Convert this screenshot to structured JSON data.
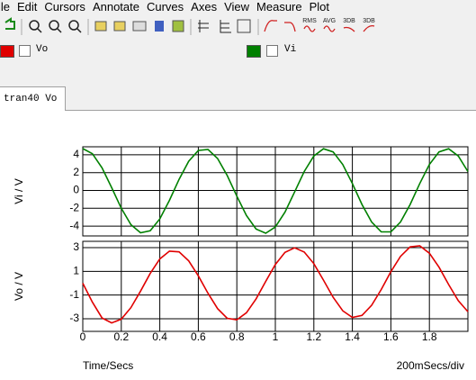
{
  "menu": [
    "ile",
    "Edit",
    "Cursors",
    "Annotate",
    "Curves",
    "Axes",
    "View",
    "Measure",
    "Plot"
  ],
  "toolbar_labels": [
    "RMS",
    "AVG",
    "3DB",
    "3DB"
  ],
  "tab": "tran40 Vo",
  "chart_data": [
    {
      "type": "line",
      "y_label": "Vi / V",
      "x": [
        0,
        0.05,
        0.1,
        0.15,
        0.2,
        0.25,
        0.3,
        0.35,
        0.4,
        0.45,
        0.5,
        0.55,
        0.6,
        0.65,
        0.7,
        0.75,
        0.8,
        0.85,
        0.9,
        0.95,
        1.0,
        1.05,
        1.1,
        1.15,
        1.2,
        1.25,
        1.3,
        1.35,
        1.4,
        1.45,
        1.5,
        1.55,
        1.6,
        1.65,
        1.7,
        1.75,
        1.8,
        1.85,
        1.9,
        1.95,
        2.0
      ],
      "series": [
        {
          "name": "Vi",
          "color": "#008000",
          "values": [
            4.7,
            4.12,
            2.54,
            0.31,
            -2.0,
            -3.84,
            -4.75,
            -4.52,
            -3.19,
            -1.11,
            1.24,
            3.27,
            4.49,
            4.61,
            3.59,
            1.68,
            -0.64,
            -2.82,
            -4.33,
            -4.8,
            -4.1,
            -2.43,
            -0.17,
            2.12,
            3.87,
            4.68,
            4.32,
            2.91,
            0.78,
            -1.57,
            -3.53,
            -4.65,
            -4.65,
            -3.53,
            -1.57,
            0.78,
            2.91,
            4.32,
            4.68,
            3.87,
            2.12
          ]
        }
      ],
      "xlim": [
        0,
        2.0
      ],
      "xticks": [
        0,
        0.2,
        0.4,
        0.6,
        0.8,
        1,
        1.2,
        1.4,
        1.6,
        1.8
      ],
      "ylim": [
        -5.1,
        4.9
      ],
      "yticks": [
        4,
        2,
        0,
        -2,
        -4
      ],
      "grid": true
    },
    {
      "type": "line",
      "y_label": "Vo / V",
      "x_label": "Time/Secs",
      "x_scale_label": "200mSecs/div",
      "x": [
        0,
        0.05,
        0.1,
        0.15,
        0.2,
        0.25,
        0.3,
        0.35,
        0.4,
        0.45,
        0.5,
        0.55,
        0.6,
        0.65,
        0.7,
        0.75,
        0.8,
        0.85,
        0.9,
        0.95,
        1.0,
        1.05,
        1.1,
        1.15,
        1.2,
        1.25,
        1.3,
        1.35,
        1.4,
        1.45,
        1.5,
        1.55,
        1.6,
        1.65,
        1.7,
        1.75,
        1.8,
        1.85,
        1.9,
        1.95,
        2.0
      ],
      "series": [
        {
          "name": "Vo",
          "color": "#e00000",
          "values": [
            0,
            -1.6,
            -2.93,
            -3.35,
            -3.03,
            -2.06,
            -0.67,
            0.82,
            2.04,
            2.7,
            2.64,
            1.88,
            0.62,
            -0.84,
            -2.14,
            -2.96,
            -3.09,
            -2.49,
            -1.32,
            0.15,
            1.58,
            2.6,
            2.98,
            2.63,
            1.65,
            0.26,
            -1.18,
            -2.32,
            -2.88,
            -2.72,
            -1.86,
            -0.53,
            0.97,
            2.26,
            3.06,
            3.15,
            2.53,
            1.35,
            -0.11,
            -1.47,
            -2.4
          ]
        }
      ],
      "xlim": [
        0,
        2.0
      ],
      "xticks": [
        0,
        0.2,
        0.4,
        0.6,
        0.8,
        1,
        1.2,
        1.4,
        1.6,
        1.8
      ],
      "ylim": [
        -4.06,
        3.53
      ],
      "yticks": [
        3,
        1,
        -1,
        -3
      ],
      "grid": true
    }
  ]
}
